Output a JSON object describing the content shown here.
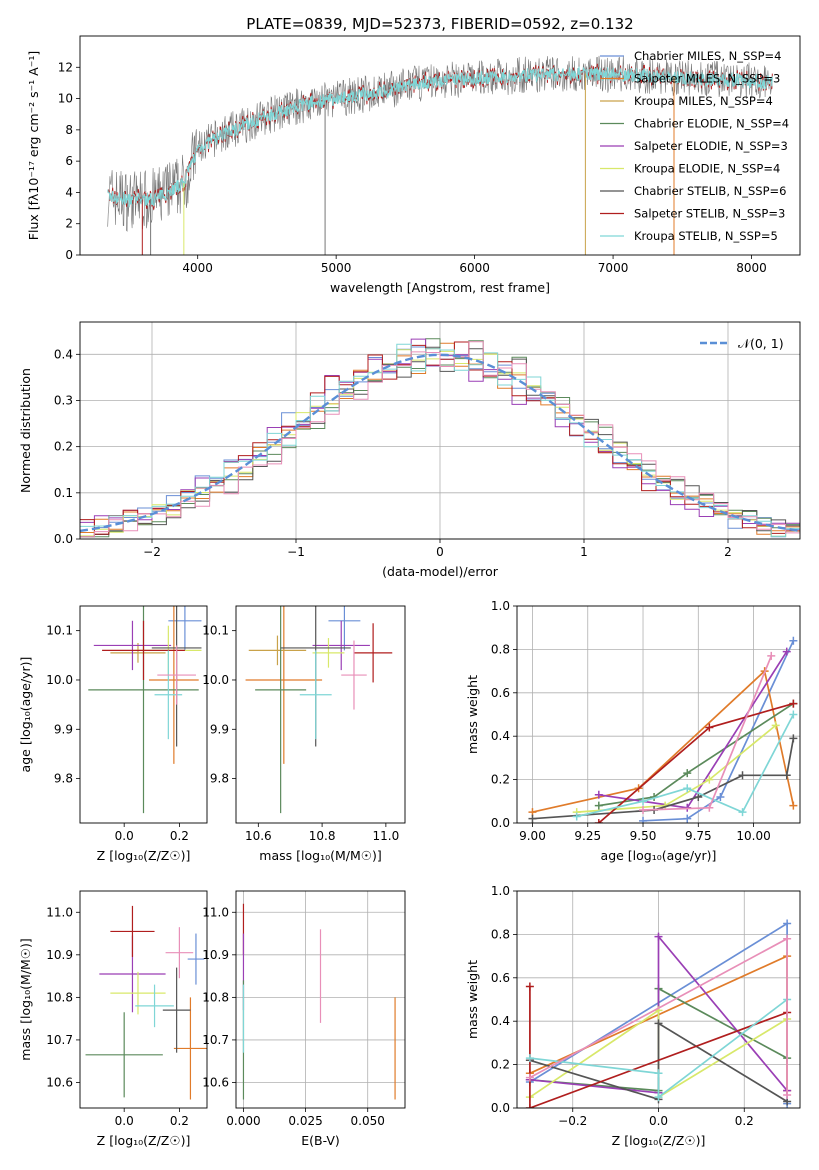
{
  "figure_title": "PLATE=0839, MJD=52373, FIBERID=0592, z=0.132",
  "colors": {
    "chabrier_miles": "#6a8fd6",
    "salpeter_miles": "#e07b2a",
    "kroupa_miles": "#c9a24a",
    "chabrier_elodie": "#5b8a5b",
    "salpeter_elodie": "#9a3fb5",
    "kroupa_elodie": "#d8e86a",
    "chabrier_stelib": "#555555",
    "salpeter_stelib": "#b01e1e",
    "kroupa_stelib": "#7fd6d6",
    "pink": "#e88fb8",
    "gauss": "#5a8fd6"
  },
  "chart_data": [
    {
      "id": "spectrum",
      "type": "line",
      "title": "PLATE=0839, MJD=52373, FIBERID=0592, z=0.132",
      "xlabel": "wavelength [Angstrom, rest frame]",
      "ylabel": "Flux [fλ10⁻¹⁷ erg cm⁻² s⁻¹ A⁻¹]",
      "xlim": [
        3150,
        8350
      ],
      "ylim": [
        0,
        14
      ],
      "xticks": [
        "4000",
        "5000",
        "6000",
        "7000",
        "8000"
      ],
      "yticks": [
        "0",
        "2",
        "4",
        "6",
        "8",
        "10",
        "12"
      ],
      "legend_position": "right",
      "legend": [
        "Chabrier MILES, N_SSP=4",
        "Salpeter MILES, N_SSP=3",
        "Kroupa MILES, N_SSP=4",
        "Chabrier ELODIE, N_SSP=4",
        "Salpeter ELODIE, N_SSP=3",
        "Kroupa ELODIE, N_SSP=4",
        "Chabrier STELIB, N_SSP=6",
        "Salpeter STELIB, N_SSP=3",
        "Kroupa STELIB, N_SSP=5"
      ],
      "continuum": {
        "x": [
          3350,
          3500,
          3700,
          3900,
          4000,
          4200,
          4500,
          4800,
          5000,
          5300,
          5600,
          6000,
          6400,
          6800,
          7200,
          7600,
          8000,
          8150
        ],
        "y": [
          3.8,
          3.5,
          3.6,
          4.6,
          6.8,
          7.8,
          8.9,
          9.7,
          10.0,
          10.4,
          11.0,
          11.3,
          11.5,
          11.6,
          11.5,
          11.3,
          11.1,
          11.0
        ]
      }
    },
    {
      "id": "residuals",
      "type": "bar",
      "xlabel": "(data-model)/error",
      "ylabel": "Normed distribution",
      "xlim": [
        -2.5,
        2.5
      ],
      "ylim": [
        0,
        0.47
      ],
      "xticks": [
        "−2",
        "−1",
        "0",
        "1",
        "2"
      ],
      "yticks": [
        "0.0",
        "0.1",
        "0.2",
        "0.3",
        "0.4"
      ],
      "legend": [
        "𝒩(0, 1)"
      ],
      "legend_position": "top-right",
      "bins": [
        -2.5,
        2.5,
        50
      ]
    },
    {
      "id": "age_vs_Z",
      "type": "scatter",
      "xlabel": "Z [log₁₀(Z/Z☉)]",
      "ylabel": "age  [log₁₀(age/yr)]",
      "xlim": [
        -0.16,
        0.3
      ],
      "ylim": [
        9.71,
        10.15
      ],
      "xticks": [
        "0.0",
        "0.2"
      ],
      "yticks": [
        "9.8",
        "9.9",
        "10.0",
        "10.1"
      ],
      "points": [
        {
          "c": "chabrier_miles",
          "x": 0.22,
          "y": 10.12,
          "ex": 0.06,
          "ey": 0.06
        },
        {
          "c": "salpeter_miles",
          "x": 0.18,
          "y": 10.0,
          "ex": 0.09,
          "ey": 0.17
        },
        {
          "c": "kroupa_miles",
          "x": 0.05,
          "y": 10.055,
          "ex": 0.1,
          "ey": 0.02
        },
        {
          "c": "chabrier_elodie",
          "x": 0.07,
          "y": 9.98,
          "ex": 0.2,
          "ey": 0.25
        },
        {
          "c": "salpeter_elodie",
          "x": 0.03,
          "y": 10.07,
          "ex": 0.14,
          "ey": 0.05
        },
        {
          "c": "kroupa_elodie",
          "x": 0.16,
          "y": 10.06,
          "ex": 0.12,
          "ey": 0.05
        },
        {
          "c": "chabrier_stelib",
          "x": 0.19,
          "y": 10.065,
          "ex": 0.09,
          "ey": 0.2
        },
        {
          "c": "salpeter_stelib",
          "x": 0.07,
          "y": 10.06,
          "ex": 0.15,
          "ey": 0.06
        },
        {
          "c": "kroupa_stelib",
          "x": 0.16,
          "y": 9.97,
          "ex": 0.05,
          "ey": 0.09
        },
        {
          "c": "pink",
          "x": 0.19,
          "y": 10.01,
          "ex": 0.07,
          "ey": 0.06
        }
      ]
    },
    {
      "id": "age_vs_mass",
      "type": "scatter",
      "xlabel": "mass [log₁₀(M/M☉)]",
      "ylabel": "",
      "xlim": [
        10.53,
        11.06
      ],
      "ylim": [
        9.71,
        10.15
      ],
      "xticks": [
        "10.6",
        "10.8",
        "11.0"
      ],
      "yticks": [
        "9.8",
        "9.9",
        "10.0",
        "10.1"
      ],
      "points": [
        {
          "c": "chabrier_miles",
          "x": 10.87,
          "y": 10.12,
          "ex": 0.05,
          "ey": 0.06
        },
        {
          "c": "salpeter_miles",
          "x": 10.68,
          "y": 10.0,
          "ex": 0.12,
          "ey": 0.17
        },
        {
          "c": "kroupa_miles",
          "x": 10.66,
          "y": 10.06,
          "ex": 0.09,
          "ey": 0.03
        },
        {
          "c": "chabrier_elodie",
          "x": 10.67,
          "y": 9.98,
          "ex": 0.08,
          "ey": 0.25
        },
        {
          "c": "salpeter_elodie",
          "x": 10.86,
          "y": 10.07,
          "ex": 0.09,
          "ey": 0.05
        },
        {
          "c": "kroupa_elodie",
          "x": 10.82,
          "y": 10.055,
          "ex": 0.05,
          "ey": 0.03
        },
        {
          "c": "chabrier_stelib",
          "x": 10.78,
          "y": 10.065,
          "ex": 0.11,
          "ey": 0.2
        },
        {
          "c": "salpeter_stelib",
          "x": 10.96,
          "y": 10.055,
          "ex": 0.06,
          "ey": 0.06
        },
        {
          "c": "kroupa_stelib",
          "x": 10.78,
          "y": 9.97,
          "ex": 0.05,
          "ey": 0.09
        },
        {
          "c": "pink",
          "x": 10.9,
          "y": 10.01,
          "ex": 0.04,
          "ey": 0.07
        }
      ]
    },
    {
      "id": "weight_vs_age",
      "type": "line",
      "xlabel": "age  [log₁₀(age/yr)]",
      "ylabel": "mass weight",
      "xlim": [
        8.93,
        10.21
      ],
      "ylim": [
        0,
        1
      ],
      "xticks": [
        "9.00",
        "9.25",
        "9.50",
        "9.75",
        "10.00"
      ],
      "yticks": [
        "0.0",
        "0.2",
        "0.4",
        "0.6",
        "0.8",
        "1.0"
      ],
      "series": [
        {
          "c": "chabrier_miles",
          "x": [
            9.5,
            9.7,
            9.85,
            10.18
          ],
          "y": [
            0.01,
            0.02,
            0.12,
            0.84
          ]
        },
        {
          "c": "salpeter_miles",
          "x": [
            9.0,
            9.48,
            10.05,
            10.18
          ],
          "y": [
            0.05,
            0.16,
            0.7,
            0.08
          ]
        },
        {
          "c": "chabrier_elodie",
          "x": [
            9.3,
            9.55,
            9.7,
            10.18
          ],
          "y": [
            0.08,
            0.12,
            0.23,
            0.55
          ]
        },
        {
          "c": "salpeter_elodie",
          "x": [
            9.3,
            9.7,
            10.15
          ],
          "y": [
            0.13,
            0.07,
            0.79
          ]
        },
        {
          "c": "kroupa_elodie",
          "x": [
            9.2,
            9.6,
            9.8,
            10.1
          ],
          "y": [
            0.05,
            0.08,
            0.2,
            0.45
          ]
        },
        {
          "c": "chabrier_stelib",
          "x": [
            9.0,
            9.55,
            9.75,
            9.95,
            10.15,
            10.18
          ],
          "y": [
            0.02,
            0.06,
            0.12,
            0.22,
            0.22,
            0.39
          ]
        },
        {
          "c": "salpeter_stelib",
          "x": [
            9.3,
            9.8,
            10.18
          ],
          "y": [
            0.0,
            0.44,
            0.55
          ]
        },
        {
          "c": "kroupa_stelib",
          "x": [
            9.2,
            9.5,
            9.7,
            9.95,
            10.18
          ],
          "y": [
            0.03,
            0.1,
            0.16,
            0.05,
            0.5
          ]
        },
        {
          "c": "pink",
          "x": [
            9.5,
            9.8,
            10.08
          ],
          "y": [
            0.06,
            0.07,
            0.77
          ]
        }
      ]
    },
    {
      "id": "mass_vs_Z",
      "type": "scatter",
      "xlabel": "Z [log₁₀(Z/Z☉)]",
      "ylabel": "mass [log₁₀(M/M☉)]",
      "xlim": [
        -0.16,
        0.3
      ],
      "ylim": [
        10.54,
        11.05
      ],
      "xticks": [
        "0.0",
        "0.2"
      ],
      "yticks": [
        "10.6",
        "10.7",
        "10.8",
        "10.9",
        "11.0"
      ],
      "points": [
        {
          "c": "chabrier_miles",
          "x": 0.26,
          "y": 10.89,
          "ex": 0.03,
          "ey": 0.06
        },
        {
          "c": "salpeter_miles",
          "x": 0.24,
          "y": 10.68,
          "ex": 0.06,
          "ey": 0.12
        },
        {
          "c": "chabrier_elodie",
          "x": 0.0,
          "y": 10.665,
          "ex": 0.14,
          "ey": 0.1
        },
        {
          "c": "salpeter_elodie",
          "x": 0.03,
          "y": 10.855,
          "ex": 0.12,
          "ey": 0.09
        },
        {
          "c": "kroupa_elodie",
          "x": 0.05,
          "y": 10.81,
          "ex": 0.1,
          "ey": 0.05
        },
        {
          "c": "chabrier_stelib",
          "x": 0.19,
          "y": 10.77,
          "ex": 0.05,
          "ey": 0.1
        },
        {
          "c": "salpeter_stelib",
          "x": 0.03,
          "y": 10.955,
          "ex": 0.08,
          "ey": 0.06
        },
        {
          "c": "kroupa_stelib",
          "x": 0.11,
          "y": 10.78,
          "ex": 0.07,
          "ey": 0.05
        },
        {
          "c": "pink",
          "x": 0.2,
          "y": 10.905,
          "ex": 0.05,
          "ey": 0.06
        }
      ]
    },
    {
      "id": "mass_vs_ebv",
      "type": "scatter",
      "xlabel": "E(B-V)",
      "ylabel": "",
      "xlim": [
        -0.003,
        0.065
      ],
      "ylim": [
        10.54,
        11.05
      ],
      "xticks": [
        "0.000",
        "0.025",
        "0.050"
      ],
      "yticks": [
        "10.6",
        "10.7",
        "10.8",
        "10.9",
        "11.0"
      ],
      "points": [
        {
          "c": "salpeter_stelib",
          "x": 0.0,
          "y": 10.96,
          "ex": 0,
          "ey": 0.06
        },
        {
          "c": "salpeter_elodie",
          "x": 0.0,
          "y": 10.86,
          "ex": 0,
          "ey": 0.09
        },
        {
          "c": "chabrier_elodie",
          "x": 0.0,
          "y": 10.7,
          "ex": 0,
          "ey": 0.14
        },
        {
          "c": "kroupa_stelib",
          "x": 0.0,
          "y": 10.75,
          "ex": 0,
          "ey": 0.08
        },
        {
          "c": "pink",
          "x": 0.031,
          "y": 10.85,
          "ex": 0,
          "ey": 0.11
        },
        {
          "c": "salpeter_miles",
          "x": 0.061,
          "y": 10.68,
          "ex": 0,
          "ey": 0.12
        }
      ]
    },
    {
      "id": "weight_vs_Z",
      "type": "line",
      "xlabel": "Z [log₁₀(Z/Z☉)]",
      "ylabel": "mass weight",
      "xlim": [
        -0.33,
        0.33
      ],
      "ylim": [
        0,
        1
      ],
      "xticks": [
        "−0.2",
        "0.0",
        "0.2"
      ],
      "yticks": [
        "0.0",
        "0.2",
        "0.4",
        "0.6",
        "0.8",
        "1.0"
      ],
      "series": [
        {
          "c": "chabrier_miles",
          "x": [
            -0.3,
            0.3,
            0.3
          ],
          "y": [
            0.12,
            0.85,
            0.02
          ]
        },
        {
          "c": "salpeter_miles",
          "x": [
            -0.3,
            0.3,
            0.3
          ],
          "y": [
            0.16,
            0.7,
            0.08
          ]
        },
        {
          "c": "chabrier_elodie",
          "x": [
            -0.3,
            0.0,
            0.0,
            0.3
          ],
          "y": [
            0.13,
            0.08,
            0.55,
            0.23
          ]
        },
        {
          "c": "salpeter_elodie",
          "x": [
            -0.3,
            0.0,
            0.0,
            0.3
          ],
          "y": [
            0.13,
            0.07,
            0.79,
            0.08
          ]
        },
        {
          "c": "kroupa_elodie",
          "x": [
            -0.3,
            0.0,
            0.0,
            0.3
          ],
          "y": [
            0.05,
            0.45,
            0.05,
            0.41
          ]
        },
        {
          "c": "chabrier_stelib",
          "x": [
            -0.3,
            0.0,
            0.0,
            0.3
          ],
          "y": [
            0.22,
            0.04,
            0.39,
            0.03
          ]
        },
        {
          "c": "salpeter_stelib",
          "x": [
            -0.3,
            -0.3,
            0.3
          ],
          "y": [
            0.56,
            0.0,
            0.44
          ]
        },
        {
          "c": "kroupa_stelib",
          "x": [
            -0.3,
            0.0,
            0.0,
            0.3
          ],
          "y": [
            0.23,
            0.16,
            0.05,
            0.5
          ]
        },
        {
          "c": "pink",
          "x": [
            -0.3,
            0.3,
            0.3
          ],
          "y": [
            0.14,
            0.78,
            0.06
          ]
        }
      ]
    }
  ]
}
